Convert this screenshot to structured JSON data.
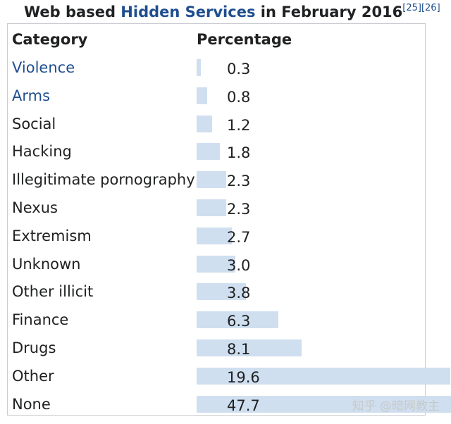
{
  "caption": {
    "prefix": "Web based",
    "link": "Hidden Services",
    "suffix": "in February 2016",
    "refs": "[25][26]"
  },
  "table": {
    "col_category": "Category",
    "col_percentage": "Percentage"
  },
  "watermark": "知乎 @暗网教主",
  "chart_data": {
    "type": "bar",
    "categories": [
      "Violence",
      "Arms",
      "Social",
      "Hacking",
      "Illegitimate pornography",
      "Nexus",
      "Extremism",
      "Unknown",
      "Other illicit",
      "Finance",
      "Drugs",
      "Other",
      "None"
    ],
    "values": [
      0.3,
      0.8,
      1.2,
      1.8,
      2.3,
      2.3,
      2.7,
      3.0,
      3.8,
      6.3,
      8.1,
      19.6,
      47.7
    ],
    "value_labels": [
      "0.3",
      "0.8",
      "1.2",
      "1.8",
      "2.3",
      "2.3",
      "2.7",
      "3.0",
      "3.8",
      "6.3",
      "8.1",
      "19.6",
      "47.7"
    ],
    "linked_categories": [
      "Violence",
      "Arms"
    ],
    "bar_color": "#cfdff0",
    "link_color": "#1f4e8f"
  }
}
